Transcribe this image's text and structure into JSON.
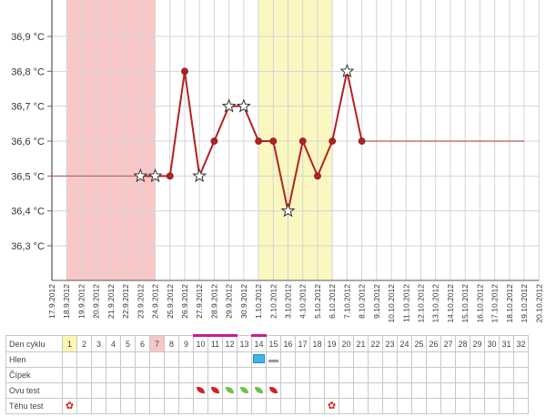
{
  "chart_data": {
    "type": "line",
    "dates": [
      "17.9.2012",
      "18.9.2012",
      "19.9.2012",
      "20.9.2012",
      "21.9.2012",
      "22.9.2012",
      "23.9.2012",
      "24.9.2012",
      "25.9.2012",
      "26.9.2012",
      "27.9.2012",
      "28.9.2012",
      "29.9.2012",
      "30.9.2012",
      "1.10.2012",
      "2.10.2012",
      "3.10.2012",
      "4.10.2012",
      "5.10.2012",
      "6.10.2012",
      "7.10.2012",
      "8.10.2012",
      "9.10.2012",
      "10.10.2012",
      "11.10.2012",
      "12.10.2012",
      "13.10.2012",
      "14.10.2012",
      "15.10.2012",
      "16.10.2012",
      "17.10.2012",
      "18.10.2012",
      "19.10.2012",
      "20.10.2012"
    ],
    "y_ticks": [
      "36,3 °C",
      "36,4 °C",
      "36,5 °C",
      "36,6 °C",
      "36,7 °C",
      "36,8 °C",
      "36,9 °C"
    ],
    "ylim": [
      36.2,
      37.0
    ],
    "grid": true,
    "series": [
      {
        "points": [
          {
            "x": "23.9.2012",
            "y": 36.5,
            "marker": "star"
          },
          {
            "x": "24.9.2012",
            "y": 36.5,
            "marker": "star"
          },
          {
            "x": "25.9.2012",
            "y": 36.5,
            "marker": "dot"
          },
          {
            "x": "26.9.2012",
            "y": 36.8,
            "marker": "dot"
          },
          {
            "x": "27.9.2012",
            "y": 36.5,
            "marker": "star"
          },
          {
            "x": "28.9.2012",
            "y": 36.6,
            "marker": "dot"
          },
          {
            "x": "29.9.2012",
            "y": 36.7,
            "marker": "star"
          },
          {
            "x": "30.9.2012",
            "y": 36.7,
            "marker": "star"
          },
          {
            "x": "1.10.2012",
            "y": 36.6,
            "marker": "dot"
          },
          {
            "x": "2.10.2012",
            "y": 36.6,
            "marker": "dot"
          },
          {
            "x": "3.10.2012",
            "y": 36.4,
            "marker": "star"
          },
          {
            "x": "4.10.2012",
            "y": 36.6,
            "marker": "dot"
          },
          {
            "x": "5.10.2012",
            "y": 36.5,
            "marker": "dot"
          },
          {
            "x": "6.10.2012",
            "y": 36.6,
            "marker": "dot"
          },
          {
            "x": "7.10.2012",
            "y": 36.8,
            "marker": "star"
          },
          {
            "x": "8.10.2012",
            "y": 36.6,
            "marker": "dot"
          }
        ],
        "color": "#b22222"
      }
    ],
    "coverline_left": {
      "from": "17.9.2012",
      "to": "24.9.2012",
      "y": 36.5
    },
    "coverline_right": {
      "from": "8.10.2012",
      "to": "19.10.2012",
      "y": 36.6
    },
    "shaded_bands": [
      {
        "from": "18.9.2012",
        "to": "24.9.2012",
        "color": "#f8c8c8"
      },
      {
        "from": "1.10.2012",
        "to": "6.10.2012",
        "color": "#fbf7c0"
      }
    ]
  },
  "table": {
    "row_labels": [
      "Den cyklu",
      "Hlen",
      "Čípek",
      "Ovu test",
      "Těhu test"
    ],
    "days": [
      "1",
      "2",
      "3",
      "4",
      "5",
      "6",
      "7",
      "8",
      "9",
      "10",
      "11",
      "12",
      "13",
      "14",
      "15",
      "16",
      "17",
      "18",
      "19",
      "20",
      "21",
      "22",
      "23",
      "24",
      "25",
      "26",
      "27",
      "28",
      "29",
      "30",
      "31",
      "32"
    ],
    "highlight_day_yellow": "1",
    "highlight_day_pink": "7",
    "marked_days": [
      "10",
      "11",
      "12",
      "14"
    ],
    "mucus": [
      {
        "day": "14",
        "type": "box",
        "color": "#3fb4e8"
      },
      {
        "day": "15",
        "type": "bar",
        "color": "#9a9a9a"
      }
    ],
    "ovu_test": [
      {
        "day": "10",
        "color": "#d62020"
      },
      {
        "day": "11",
        "color": "#d62020"
      },
      {
        "day": "12",
        "color": "#6cc24a"
      },
      {
        "day": "13",
        "color": "#6cc24a"
      },
      {
        "day": "14",
        "color": "#6cc24a"
      },
      {
        "day": "15",
        "color": "#d62020"
      }
    ],
    "pregnancy_test": [
      {
        "day": "1",
        "icon": "flower-icon"
      },
      {
        "day": "19",
        "icon": "flower-icon"
      }
    ]
  }
}
